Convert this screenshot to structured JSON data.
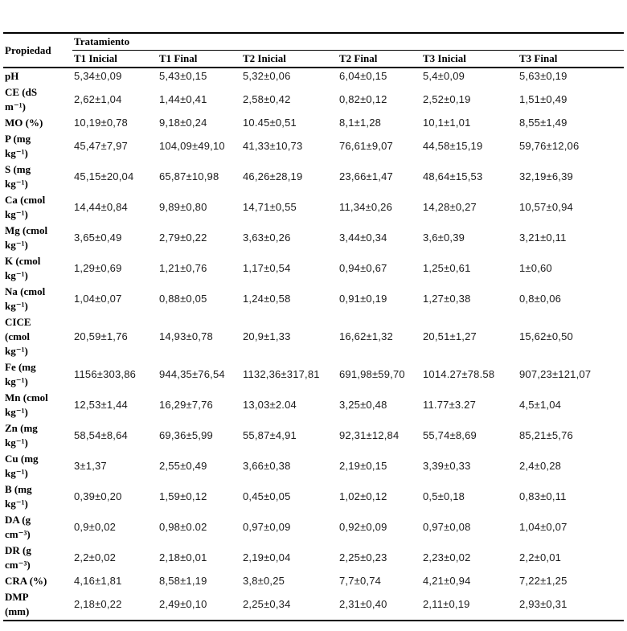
{
  "table": {
    "property_header": "Propiedad",
    "group_header": "Tratamiento",
    "columns": [
      "T1 Inicial",
      "T1 Final",
      "T2 Inicial",
      "T2 Final",
      "T3 Inicial",
      "T3 Final"
    ],
    "rows": [
      {
        "property": "pH",
        "values": [
          "5,34±0,09",
          "5,43±0,15",
          "5,32±0,06",
          "6,04±0,15",
          "5,4±0,09",
          "5,63±0,19"
        ]
      },
      {
        "property": "CE (dS\nm⁻¹)",
        "values": [
          "2,62±1,04",
          "1,44±0,41",
          "2,58±0,42",
          "0,82±0,12",
          "2,52±0,19",
          "1,51±0,49"
        ]
      },
      {
        "property": "MO (%)",
        "values": [
          "10,19±0,78",
          "9,18±0,24",
          "10.45±0,51",
          "8,1±1,28",
          "10,1±1,01",
          "8,55±1,49"
        ]
      },
      {
        "property": "P (mg\nkg⁻¹)",
        "values": [
          "45,47±7,97",
          "104,09±49,10",
          "41,33±10,73",
          "76,61±9,07",
          "44,58±15,19",
          "59,76±12,06"
        ]
      },
      {
        "property": "S (mg\nkg⁻¹)",
        "values": [
          "45,15±20,04",
          "65,87±10,98",
          "46,26±28,19",
          "23,66±1,47",
          "48,64±15,53",
          "32,19±6,39"
        ]
      },
      {
        "property": "Ca (cmol\nkg⁻¹)",
        "values": [
          "14,44±0,84",
          "9,89±0,80",
          "14,71±0,55",
          "11,34±0,26",
          "14,28±0,27",
          "10,57±0,94"
        ]
      },
      {
        "property": "Mg (cmol\nkg⁻¹)",
        "values": [
          "3,65±0,49",
          "2,79±0,22",
          "3,63±0,26",
          "3,44±0,34",
          "3,6±0,39",
          "3,21±0,11"
        ]
      },
      {
        "property": "K (cmol\nkg⁻¹)",
        "values": [
          "1,29±0,69",
          "1,21±0,76",
          "1,17±0,54",
          "0,94±0,67",
          "1,25±0,61",
          "1±0,60"
        ]
      },
      {
        "property": "Na (cmol\nkg⁻¹)",
        "values": [
          "1,04±0,07",
          "0,88±0,05",
          "1,24±0,58",
          "0,91±0,19",
          "1,27±0,38",
          "0,8±0,06"
        ]
      },
      {
        "property": "CICE\n(cmol\nkg⁻¹)",
        "values": [
          "20,59±1,76",
          "14,93±0,78",
          "20,9±1,33",
          "16,62±1,32",
          "20,51±1,27",
          "15,62±0,50"
        ]
      },
      {
        "property": "Fe (mg\nkg⁻¹)",
        "values": [
          "1156±303,86",
          "944,35±76,54",
          "1132,36±317,81",
          "691,98±59,70",
          "1014.27±78.58",
          "907,23±121,07"
        ]
      },
      {
        "property": "Mn (cmol\nkg⁻¹)",
        "values": [
          "12,53±1,44",
          "16,29±7,76",
          "13,03±2.04",
          "3,25±0,48",
          "11.77±3.27",
          "4,5±1,04"
        ]
      },
      {
        "property": "Zn (mg\nkg⁻¹)",
        "values": [
          "58,54±8,64",
          "69,36±5,99",
          "55,87±4,91",
          "92,31±12,84",
          "55,74±8,69",
          "85,21±5,76"
        ]
      },
      {
        "property": "Cu (mg\nkg⁻¹)",
        "values": [
          "3±1,37",
          "2,55±0,49",
          "3,66±0,38",
          "2,19±0,15",
          "3,39±0,33",
          "2,4±0,28"
        ]
      },
      {
        "property": "B (mg\nkg⁻¹)",
        "values": [
          "0,39±0,20",
          "1,59±0,12",
          "0,45±0,05",
          "1,02±0,12",
          "0,5±0,18",
          "0,83±0,11"
        ]
      },
      {
        "property": "DA (g\ncm⁻³)",
        "values": [
          "0,9±0,02",
          "0,98±0.02",
          "0,97±0,09",
          "0,92±0,09",
          "0,97±0,08",
          "1,04±0,07"
        ]
      },
      {
        "property": "DR (g\ncm⁻³)",
        "values": [
          "2,2±0,02",
          "2,18±0,01",
          "2,19±0,04",
          "2,25±0,23",
          "2,23±0,02",
          "2,2±0,01"
        ]
      },
      {
        "property": "CRA (%)",
        "values": [
          "4,16±1,81",
          "8,58±1,19",
          "3,8±0,25",
          "7,7±0,74",
          "4,21±0,94",
          "7,22±1,25"
        ]
      },
      {
        "property": "DMP\n(mm)",
        "values": [
          "2,18±0,22",
          "2,49±0,10",
          "2,25±0,34",
          "2,31±0,40",
          "2,11±0,19",
          "2,93±0,31"
        ]
      }
    ]
  }
}
